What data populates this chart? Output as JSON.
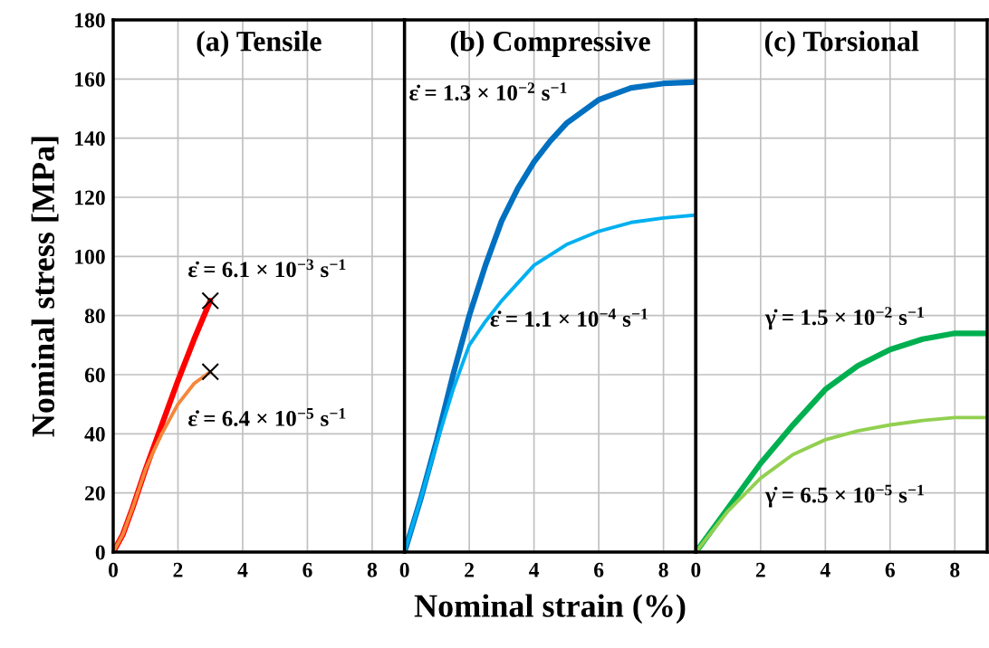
{
  "chart_data": [
    {
      "type": "line",
      "title": "(a) Tensile",
      "ylabel": "Nominal stress [MPa]",
      "xlim": [
        0,
        9
      ],
      "xticks": [
        0,
        2,
        4,
        6,
        8
      ],
      "ylim": [
        0,
        180
      ],
      "yticks": [
        0,
        20,
        40,
        60,
        80,
        100,
        120,
        140,
        160,
        180
      ],
      "grid": true,
      "marker": "none",
      "line_style": "solid",
      "series": [
        {
          "name": "ε̇ = 6.1 × 10$^{−3}$ s$^{−1}$",
          "color": "#ff0000",
          "x": [
            0,
            0.3,
            0.6,
            1,
            1.5,
            2,
            2.5,
            3
          ],
          "values": [
            0,
            6,
            15,
            28,
            43,
            58,
            72,
            85
          ]
        },
        {
          "name": "ε̇ = 6.4 × 10$^{−5}$ s$^{−1}$",
          "color": "#f4873a",
          "x": [
            0,
            0.3,
            0.6,
            1,
            1.2,
            1.5,
            2,
            2.5,
            3
          ],
          "values": [
            0,
            6,
            15,
            28,
            33,
            40,
            50,
            57,
            61
          ]
        },
        {
          "type": "scatter",
          "marker": "cross",
          "color": "#000000",
          "x": [
            3,
            3
          ],
          "values": [
            85,
            61
          ]
        }
      ]
    },
    {
      "type": "line",
      "title": "(b) Compressive",
      "xlabel": "Nominal strain (%)",
      "xlim": [
        0,
        9
      ],
      "xticks": [
        0,
        2,
        4,
        6,
        8
      ],
      "ylim": [
        0,
        180
      ],
      "yticks": [
        0,
        20,
        40,
        60,
        80,
        100,
        120,
        140,
        160,
        180
      ],
      "tick_labels": "x",
      "grid": true,
      "marker": "none",
      "line_style": "solid",
      "series": [
        {
          "name": "ε̇ = 1.3 × 10$^{−2}$ s$^{−1}$",
          "color": "#0070c0",
          "x": [
            0,
            0.5,
            1,
            1.5,
            2,
            2.5,
            3,
            3.5,
            4,
            4.5,
            5,
            5.5,
            6,
            6.5,
            7,
            8,
            9
          ],
          "values": [
            0,
            18,
            38,
            60,
            80,
            97,
            112,
            123,
            132,
            139,
            145,
            149,
            153,
            155,
            157,
            158.5,
            159
          ]
        },
        {
          "name": "ε̇ = 1.1 × 10$^{−4}$ s$^{−1}$",
          "color": "#00b0f0",
          "x": [
            0,
            0.5,
            1,
            1.5,
            2,
            2.5,
            3,
            4,
            5,
            6,
            7,
            8,
            9
          ],
          "values": [
            0,
            18,
            37,
            55,
            70,
            78,
            85,
            97,
            104,
            108.5,
            111.5,
            113,
            114
          ]
        }
      ]
    },
    {
      "type": "line",
      "title": "(c) Torsional",
      "xlim": [
        0,
        9
      ],
      "xticks": [
        0,
        2,
        4,
        6,
        8
      ],
      "ylim": [
        0,
        180
      ],
      "yticks": [
        0,
        20,
        40,
        60,
        80,
        100,
        120,
        140,
        160,
        180
      ],
      "tick_labels": "x",
      "grid": true,
      "marker": "none",
      "line_style": "solid",
      "series": [
        {
          "name": "γ̇ = 1.5 × 10$^{−2}$ s$^{−1}$",
          "color": "#00b050",
          "x": [
            0,
            1,
            2,
            3,
            4,
            5,
            6,
            7,
            8,
            9
          ],
          "values": [
            0,
            15,
            30,
            43,
            55,
            63,
            68.5,
            72,
            74,
            74
          ]
        },
        {
          "name": "γ̇ = 6.5 × 10$^{−5}$ s$^{−1}$",
          "color": "#92d050",
          "x": [
            0,
            1,
            2,
            3,
            4,
            5,
            6,
            7,
            8,
            9
          ],
          "values": [
            0,
            14,
            25,
            33,
            38,
            41,
            43,
            44.5,
            45.5,
            45.5
          ]
        }
      ]
    }
  ]
}
